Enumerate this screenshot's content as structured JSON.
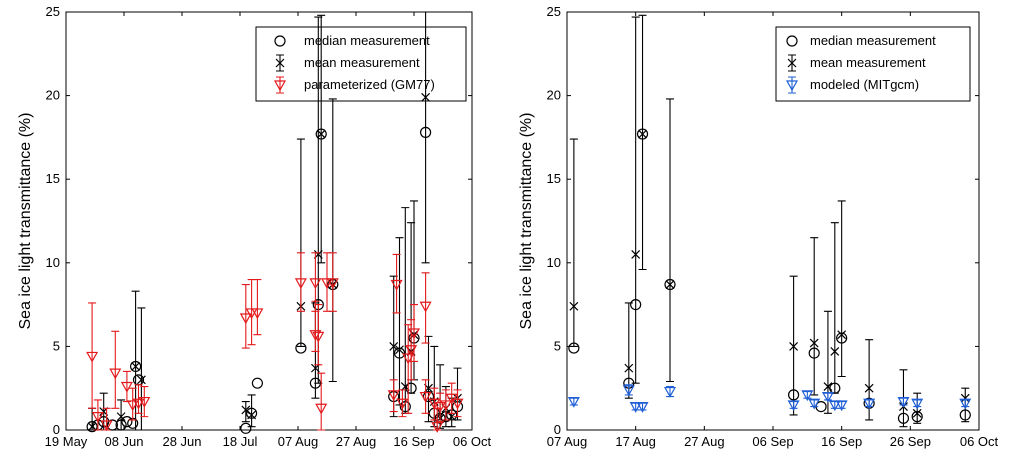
{
  "chart_data": [
    {
      "type": "scatter",
      "ylabel": "Sea ice light transmittance (%)",
      "ylim": [
        0,
        25
      ],
      "yticks": [
        0,
        5,
        10,
        15,
        20,
        25
      ],
      "xtick_labels": [
        "19 May",
        "08 Jun",
        "28 Jun",
        "18 Jul",
        "07 Aug",
        "27 Aug",
        "16 Sep",
        "06 Oct"
      ],
      "xticks_day": [
        0,
        20,
        40,
        60,
        80,
        100,
        120,
        140
      ],
      "xlim_day": [
        0,
        140
      ],
      "legend_position": "top-right",
      "legend": [
        {
          "label": "median measurement",
          "marker": "circle",
          "color": "#000000"
        },
        {
          "label": "mean measurement",
          "marker": "x-errorbar",
          "color": "#000000"
        },
        {
          "label": "parameterized (GM77)",
          "marker": "triangle-errorbar",
          "color": "#e41a1c"
        }
      ],
      "series": [
        {
          "name": "median measurement",
          "color": "#000000",
          "marker": "circle",
          "points": [
            [
              9,
              0.2
            ],
            [
              11,
              0.3
            ],
            [
              13,
              0.5
            ],
            [
              16,
              0.3
            ],
            [
              19,
              0.3
            ],
            [
              21,
              0.5
            ],
            [
              23,
              0.4
            ],
            [
              24,
              3.8
            ],
            [
              25,
              3.0
            ],
            [
              62,
              0.1
            ],
            [
              64,
              1.0
            ],
            [
              66,
              2.8
            ],
            [
              81,
              4.9
            ],
            [
              86,
              2.8
            ],
            [
              87,
              7.5
            ],
            [
              88,
              17.7
            ],
            [
              92,
              8.7
            ],
            [
              113,
              2.0
            ],
            [
              115,
              4.6
            ],
            [
              117,
              1.4
            ],
            [
              119,
              2.5
            ],
            [
              120,
              5.5
            ],
            [
              124,
              17.8
            ],
            [
              125,
              2.0
            ],
            [
              127,
              1.0
            ],
            [
              129,
              0.7
            ],
            [
              131,
              0.8
            ],
            [
              133,
              0.9
            ],
            [
              135,
              1.4
            ]
          ]
        },
        {
          "name": "mean measurement",
          "color": "#000000",
          "marker": "x",
          "points": [
            [
              9,
              0.2,
              0,
              1.3
            ],
            [
              13,
              1.1,
              0,
              2.2
            ],
            [
              19,
              0.8,
              0,
              1.8
            ],
            [
              24,
              3.8,
              0,
              8.3
            ],
            [
              26,
              3.0,
              0,
              7.3
            ],
            [
              62,
              1.2,
              0.5,
              1.7
            ],
            [
              64,
              0.9,
              0.2,
              2.1
            ],
            [
              81,
              7.4,
              5.0,
              17.4
            ],
            [
              86,
              3.7,
              1.9,
              7.6
            ],
            [
              87,
              10.5,
              2.8,
              24.7
            ],
            [
              88,
              17.7,
              10.0,
              24.8
            ],
            [
              92,
              8.7,
              2.9,
              19.8
            ],
            [
              113,
              5.0,
              0.8,
              9.2
            ],
            [
              115,
              4.8,
              1.5,
              11.5
            ],
            [
              117,
              2.6,
              1.0,
              13.3
            ],
            [
              119,
              4.7,
              2.2,
              12.4
            ],
            [
              120,
              5.7,
              3.0,
              13.7
            ],
            [
              124,
              19.9,
              10.0,
              25.0
            ],
            [
              125,
              2.5,
              0.5,
              5.6
            ],
            [
              127,
              1.7,
              0.2,
              5.0
            ],
            [
              129,
              0.7,
              0.1,
              3.9
            ],
            [
              131,
              1.3,
              0.2,
              2.6
            ],
            [
              133,
              0.8,
              0.2,
              1.9
            ],
            [
              135,
              1.9,
              0.6,
              3.7
            ]
          ]
        },
        {
          "name": "parameterized (GM77)",
          "color": "#e41a1c",
          "marker": "triangle",
          "points": [
            [
              9,
              4.4,
              1.3,
              7.6
            ],
            [
              11,
              0.8,
              0.0,
              1.8
            ],
            [
              14,
              0.3,
              0.0,
              1.3
            ],
            [
              17,
              3.4,
              1.3,
              5.9
            ],
            [
              21,
              2.6,
              1.7,
              3.5
            ],
            [
              23,
              1.5,
              0.6,
              2.5
            ],
            [
              25,
              1.6,
              1.0,
              2.7
            ],
            [
              27,
              1.7,
              0.8,
              2.6
            ],
            [
              62,
              6.7,
              4.9,
              8.7
            ],
            [
              64,
              7.0,
              5.1,
              9.0
            ],
            [
              66,
              7.0,
              5.7,
              9.0
            ],
            [
              81,
              8.8,
              7.1,
              10.6
            ],
            [
              86,
              8.8,
              7.1,
              10.6
            ],
            [
              86,
              5.7,
              4.7,
              7.7
            ],
            [
              87,
              5.6,
              3.9,
              7.5
            ],
            [
              88,
              1.3,
              0.0,
              3.4
            ],
            [
              90,
              8.8,
              7.1,
              10.6
            ],
            [
              92,
              8.8,
              7.1,
              10.6
            ],
            [
              113,
              2.1,
              1.1,
              3.0
            ],
            [
              114,
              8.7,
              7.0,
              10.5
            ],
            [
              116,
              1.6,
              0.8,
              2.4
            ],
            [
              118,
              4.3,
              1.0,
              6.3
            ],
            [
              119,
              4.8,
              3.0,
              6.6
            ],
            [
              120,
              5.8,
              4.1,
              7.5
            ],
            [
              124,
              7.4,
              5.2,
              9.4
            ],
            [
              124,
              2.0,
              1.0,
              3.0
            ],
            [
              127,
              1.6,
              0.6,
              2.5
            ],
            [
              128,
              0.2,
              0.0,
              1.3
            ],
            [
              129,
              1.4,
              0.5,
              2.2
            ],
            [
              131,
              1.5,
              0.6,
              2.4
            ],
            [
              133,
              1.9,
              1.0,
              2.8
            ],
            [
              135,
              1.6,
              0.8,
              2.4
            ]
          ]
        }
      ]
    },
    {
      "type": "scatter",
      "ylabel": "Sea ice light transmittance (%)",
      "ylim": [
        0,
        25
      ],
      "yticks": [
        0,
        5,
        10,
        15,
        20,
        25
      ],
      "xtick_labels": [
        "07 Aug",
        "17 Aug",
        "27 Aug",
        "06 Sep",
        "16 Sep",
        "26 Sep",
        "06 Oct"
      ],
      "xticks_day": [
        0,
        10,
        20,
        30,
        40,
        50,
        60
      ],
      "xlim_day": [
        0,
        60
      ],
      "legend_position": "top-right",
      "legend": [
        {
          "label": "median measurement",
          "marker": "circle",
          "color": "#000000"
        },
        {
          "label": "mean measurement",
          "marker": "x-errorbar",
          "color": "#000000"
        },
        {
          "label": "modeled (MITgcm)",
          "marker": "triangle-errorbar",
          "color": "#1f5fd6"
        }
      ],
      "series": [
        {
          "name": "median measurement",
          "color": "#000000",
          "marker": "circle",
          "points": [
            [
              1,
              4.9
            ],
            [
              9,
              2.8
            ],
            [
              10,
              7.5
            ],
            [
              11,
              17.7
            ],
            [
              15,
              8.7
            ],
            [
              33,
              2.1
            ],
            [
              36,
              4.6
            ],
            [
              37,
              1.4
            ],
            [
              39,
              2.5
            ],
            [
              40,
              5.5
            ],
            [
              44,
              1.6
            ],
            [
              49,
              0.7
            ],
            [
              51,
              0.8
            ],
            [
              58,
              0.9
            ]
          ]
        },
        {
          "name": "mean measurement",
          "color": "#000000",
          "marker": "x",
          "points": [
            [
              1,
              7.4,
              5.0,
              17.4
            ],
            [
              9,
              3.7,
              1.9,
              7.6
            ],
            [
              10,
              10.5,
              2.8,
              24.7
            ],
            [
              11,
              17.7,
              9.6,
              24.8
            ],
            [
              15,
              8.7,
              2.9,
              19.8
            ],
            [
              33,
              5.0,
              0.9,
              9.2
            ],
            [
              36,
              5.2,
              2.1,
              11.5
            ],
            [
              38,
              2.6,
              1.0,
              7.1
            ],
            [
              39,
              4.7,
              2.2,
              12.4
            ],
            [
              40,
              5.7,
              3.2,
              13.7
            ],
            [
              44,
              2.5,
              0.6,
              5.4
            ],
            [
              49,
              1.4,
              0.2,
              3.6
            ],
            [
              51,
              1.0,
              0.4,
              2.2
            ],
            [
              58,
              1.9,
              0.5,
              2.5
            ]
          ]
        },
        {
          "name": "modeled (MITgcm)",
          "color": "#1f5fd6",
          "marker": "triangle",
          "points": [
            [
              1,
              1.7,
              1.5,
              1.9
            ],
            [
              9,
              2.4,
              2.1,
              2.7
            ],
            [
              10,
              1.4,
              1.2,
              1.6
            ],
            [
              11,
              1.4,
              1.2,
              1.6
            ],
            [
              15,
              2.3,
              2.0,
              2.6
            ],
            [
              33,
              1.5,
              1.3,
              1.7
            ],
            [
              35,
              2.1,
              1.9,
              2.3
            ],
            [
              36,
              1.6,
              1.4,
              1.8
            ],
            [
              38,
              2.0,
              1.8,
              2.2
            ],
            [
              39,
              1.5,
              1.3,
              1.7
            ],
            [
              40,
              1.5,
              1.3,
              1.7
            ],
            [
              44,
              1.6,
              1.4,
              1.8
            ],
            [
              49,
              1.7,
              1.5,
              1.9
            ],
            [
              51,
              1.6,
              1.4,
              1.8
            ],
            [
              58,
              1.6,
              1.4,
              1.8
            ]
          ]
        }
      ]
    }
  ]
}
